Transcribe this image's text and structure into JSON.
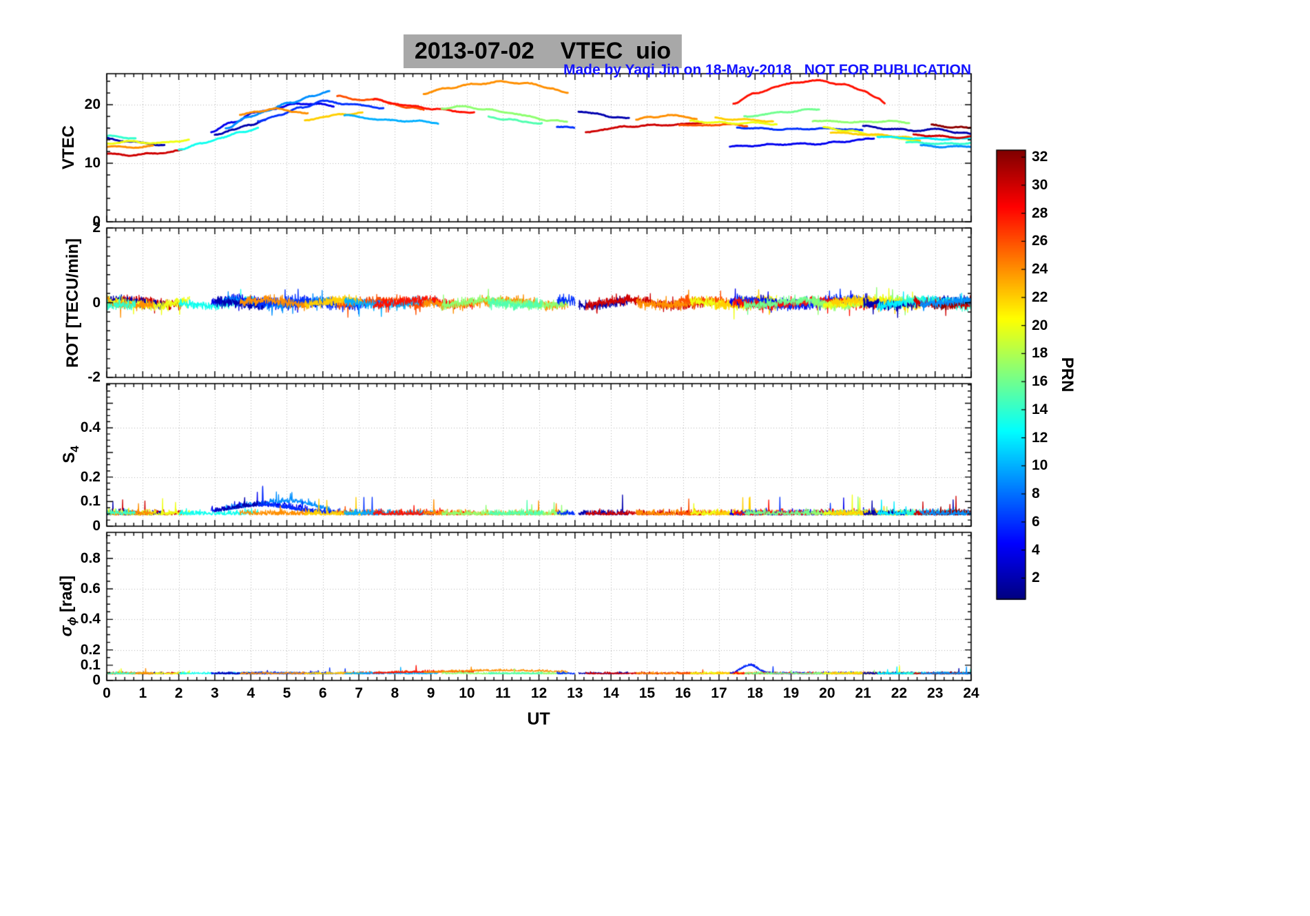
{
  "header": {
    "title": "2013-07-02    VTEC  uio",
    "credit": "Made by Yaqi Jin on 18-May-2018",
    "notice": "NOT FOR PUBLICATION"
  },
  "colors": {
    "credit_blue": "#1414ff",
    "title_bg": "#a8a8a8",
    "grid": "#b0b0b0"
  },
  "axis_labels": {
    "s4_main": "S",
    "s4_sub": "4",
    "sigma_symbol": "σ",
    "sigma_sub": "ϕ",
    "sigma_unit": " [rad]"
  },
  "chart_data": {
    "type": "line",
    "title": "2013-07-02    VTEC  uio",
    "xlabel": "UT",
    "x_range": [
      0,
      24
    ],
    "x_ticks": [
      0,
      1,
      2,
      3,
      4,
      5,
      6,
      7,
      8,
      9,
      10,
      11,
      12,
      13,
      14,
      15,
      16,
      17,
      18,
      19,
      20,
      21,
      22,
      23,
      24
    ],
    "x_minor_step": 0.25,
    "grid": "dotted",
    "colorbar": {
      "label": "PRN",
      "colormap": "jet",
      "range": [
        0.5,
        32.5
      ],
      "ticks": [
        2,
        4,
        6,
        8,
        10,
        12,
        14,
        16,
        18,
        20,
        22,
        24,
        26,
        28,
        30,
        32
      ]
    },
    "panels": [
      {
        "id": "vtec",
        "ylabel": "VTEC",
        "ylim": [
          0,
          25.3
        ],
        "yticks": [
          [
            0,
            "0"
          ],
          [
            10,
            "10"
          ],
          [
            20,
            "20"
          ]
        ],
        "minor_step": 2,
        "grid_y": [
          10,
          20
        ]
      },
      {
        "id": "rot",
        "ylabel": "ROT [TECU/min]",
        "ylim": [
          -2,
          2
        ],
        "yticks": [
          [
            -2,
            "-2"
          ],
          [
            0,
            "0"
          ],
          [
            2,
            "2"
          ]
        ],
        "minor_step": 0.25,
        "grid_y": [
          0
        ]
      },
      {
        "id": "s4",
        "ylabel": "S_4",
        "ylim": [
          0,
          0.58
        ],
        "yticks": [
          [
            0,
            "0"
          ],
          [
            0.1,
            "0.1"
          ],
          [
            0.2,
            "0.2"
          ],
          [
            0.3,
            null
          ],
          [
            0.4,
            "0.4"
          ],
          [
            0.5,
            null
          ]
        ],
        "minor_step": 0.025,
        "grid_y": [
          0.2,
          0.4
        ]
      },
      {
        "id": "sigma",
        "ylabel": "σ_ϕ [rad]",
        "ylim": [
          0,
          0.97
        ],
        "yticks": [
          [
            0,
            "0"
          ],
          [
            0.1,
            "0.1"
          ],
          [
            0.2,
            "0.2"
          ],
          [
            0.4,
            "0.4"
          ],
          [
            0.6,
            "0.6"
          ],
          [
            0.8,
            "0.8"
          ]
        ],
        "minor_step": 0.05,
        "grid_y": [
          0.2,
          0.4,
          0.6,
          0.8
        ]
      }
    ],
    "arcs": [
      {
        "prn": 30,
        "pts": [
          [
            0,
            11.6
          ],
          [
            0.6,
            11.4
          ],
          [
            1.2,
            11.6
          ],
          [
            1.7,
            11.9
          ],
          [
            2.1,
            12.2
          ]
        ]
      },
      {
        "prn": 2,
        "pts": [
          [
            0,
            14.2
          ],
          [
            0.5,
            13.8
          ],
          [
            1.1,
            13.4
          ],
          [
            1.6,
            13.1
          ]
        ]
      },
      {
        "prn": 20,
        "pts": [
          [
            0,
            13.4
          ],
          [
            0.7,
            13.7
          ],
          [
            1.4,
            13.4
          ],
          [
            2.0,
            13.8
          ],
          [
            2.3,
            14.0
          ]
        ]
      },
      {
        "prn": 24,
        "pts": [
          [
            0,
            12.9
          ],
          [
            0.6,
            12.7
          ],
          [
            1.3,
            12.9
          ]
        ]
      },
      {
        "prn": 14,
        "pts": [
          [
            0,
            14.6
          ],
          [
            0.8,
            14.3
          ]
        ]
      },
      {
        "prn": 13,
        "pts": [
          [
            2.0,
            12.4
          ],
          [
            2.6,
            13.3
          ],
          [
            3.2,
            14.4
          ],
          [
            3.8,
            15.4
          ],
          [
            4.2,
            16.0
          ]
        ]
      },
      {
        "prn": 4,
        "pts": [
          [
            2.9,
            15.4
          ],
          [
            3.5,
            17.0
          ],
          [
            4.1,
            18.6
          ],
          [
            4.7,
            19.4
          ],
          [
            5.3,
            20.2
          ],
          [
            5.9,
            20.1
          ],
          [
            6.3,
            19.8
          ]
        ]
      },
      {
        "prn": 9,
        "pts": [
          [
            3.3,
            16.0
          ],
          [
            3.9,
            17.8
          ],
          [
            4.5,
            19.1
          ],
          [
            5.1,
            20.4
          ],
          [
            5.7,
            21.4
          ],
          [
            6.2,
            22.4
          ]
        ]
      },
      {
        "prn": 2,
        "pts": [
          [
            3.0,
            14.9
          ],
          [
            3.5,
            15.7
          ],
          [
            4.0,
            16.6
          ],
          [
            4.4,
            17.4
          ]
        ]
      },
      {
        "prn": 6,
        "pts": [
          [
            4.2,
            17.1
          ],
          [
            4.8,
            18.3
          ],
          [
            5.4,
            19.5
          ],
          [
            6.0,
            20.6
          ],
          [
            6.6,
            20.2
          ],
          [
            7.2,
            19.8
          ],
          [
            7.7,
            19.4
          ]
        ]
      },
      {
        "prn": 26,
        "pts": [
          [
            6.4,
            21.6
          ],
          [
            6.9,
            20.8
          ],
          [
            7.4,
            21.0
          ],
          [
            7.9,
            20.2
          ],
          [
            8.4,
            19.5
          ],
          [
            8.8,
            19.2
          ]
        ]
      },
      {
        "prn": 24,
        "pts": [
          [
            3.7,
            18.2
          ],
          [
            4.2,
            18.9
          ],
          [
            4.7,
            19.3
          ],
          [
            5.2,
            18.9
          ],
          [
            5.6,
            18.4
          ]
        ]
      },
      {
        "prn": 22,
        "pts": [
          [
            5.5,
            17.3
          ],
          [
            6.0,
            17.9
          ],
          [
            6.6,
            18.4
          ],
          [
            7.1,
            18.6
          ]
        ]
      },
      {
        "prn": 10,
        "pts": [
          [
            6.6,
            18.3
          ],
          [
            7.2,
            17.7
          ],
          [
            7.9,
            17.3
          ],
          [
            8.6,
            17.2
          ],
          [
            9.2,
            16.9
          ]
        ]
      },
      {
        "prn": 28,
        "pts": [
          [
            7.4,
            20.9
          ],
          [
            7.9,
            20.3
          ],
          [
            8.5,
            19.7
          ],
          [
            9.1,
            19.3
          ],
          [
            9.7,
            18.9
          ],
          [
            10.2,
            18.6
          ]
        ]
      },
      {
        "prn": 24,
        "pts": [
          [
            8.8,
            21.9
          ],
          [
            9.5,
            22.9
          ],
          [
            10.2,
            23.5
          ],
          [
            10.9,
            23.9
          ],
          [
            11.6,
            23.7
          ],
          [
            12.3,
            22.9
          ],
          [
            12.8,
            21.9
          ]
        ]
      },
      {
        "prn": 17,
        "pts": [
          [
            9.3,
            19.4
          ],
          [
            9.9,
            19.7
          ],
          [
            10.5,
            19.2
          ],
          [
            11.1,
            18.7
          ],
          [
            11.7,
            18.0
          ],
          [
            12.3,
            17.3
          ],
          [
            12.8,
            17.1
          ]
        ]
      },
      {
        "prn": 15,
        "pts": [
          [
            10.6,
            17.9
          ],
          [
            11.1,
            17.5
          ],
          [
            11.6,
            17.1
          ],
          [
            12.1,
            16.8
          ]
        ]
      },
      {
        "prn": 6,
        "pts": [
          [
            12.5,
            16.3
          ],
          [
            13.0,
            16.0
          ]
        ]
      },
      {
        "prn": 2,
        "pts": [
          [
            13.1,
            18.9
          ],
          [
            13.6,
            18.4
          ],
          [
            14.1,
            17.9
          ],
          [
            14.5,
            17.6
          ]
        ]
      },
      {
        "prn": 30,
        "pts": [
          [
            13.3,
            15.2
          ],
          [
            13.9,
            15.9
          ],
          [
            14.5,
            16.3
          ],
          [
            15.2,
            16.5
          ],
          [
            15.9,
            16.6
          ],
          [
            16.6,
            17.0
          ]
        ]
      },
      {
        "prn": 24,
        "pts": [
          [
            14.7,
            17.4
          ],
          [
            15.1,
            17.9
          ],
          [
            15.6,
            18.2
          ],
          [
            16.0,
            18.0
          ],
          [
            16.4,
            17.6
          ]
        ]
      },
      {
        "prn": 26,
        "pts": [
          [
            15.9,
            16.6
          ],
          [
            16.4,
            16.4
          ],
          [
            16.9,
            16.6
          ],
          [
            17.4,
            16.6
          ],
          [
            17.8,
            16.4
          ]
        ]
      },
      {
        "prn": 20,
        "pts": [
          [
            16.2,
            17.2
          ],
          [
            16.8,
            17.0
          ],
          [
            17.4,
            16.8
          ],
          [
            18.0,
            16.9
          ],
          [
            18.6,
            16.7
          ]
        ]
      },
      {
        "prn": 22,
        "pts": [
          [
            16.9,
            17.7
          ],
          [
            17.4,
            17.5
          ],
          [
            18.0,
            17.4
          ],
          [
            18.5,
            17.1
          ]
        ]
      },
      {
        "prn": 4,
        "pts": [
          [
            17.3,
            12.8
          ],
          [
            17.9,
            13.0
          ],
          [
            18.5,
            13.2
          ],
          [
            19.1,
            13.3
          ],
          [
            19.7,
            13.3
          ],
          [
            20.3,
            13.6
          ],
          [
            20.9,
            14.0
          ],
          [
            21.3,
            14.2
          ]
        ]
      },
      {
        "prn": 6,
        "pts": [
          [
            17.5,
            16.1
          ],
          [
            18.2,
            15.9
          ],
          [
            18.9,
            15.8
          ],
          [
            19.6,
            15.9
          ],
          [
            20.3,
            15.9
          ],
          [
            21.0,
            15.6
          ]
        ]
      },
      {
        "prn": 28,
        "pts": [
          [
            17.4,
            20.3
          ],
          [
            18.0,
            21.9
          ],
          [
            18.6,
            23.1
          ],
          [
            19.2,
            23.9
          ],
          [
            19.8,
            24.1
          ],
          [
            20.4,
            23.5
          ],
          [
            21.0,
            22.5
          ],
          [
            21.4,
            21.1
          ],
          [
            21.6,
            20.2
          ]
        ]
      },
      {
        "prn": 16,
        "pts": [
          [
            17.7,
            17.9
          ],
          [
            18.3,
            18.4
          ],
          [
            18.9,
            18.8
          ],
          [
            19.4,
            19.1
          ],
          [
            19.8,
            19.2
          ]
        ]
      },
      {
        "prn": 17,
        "pts": [
          [
            19.6,
            17.3
          ],
          [
            20.3,
            17.1
          ],
          [
            21.0,
            17.0
          ],
          [
            21.7,
            17.2
          ],
          [
            22.3,
            16.9
          ]
        ]
      },
      {
        "prn": 20,
        "pts": [
          [
            19.9,
            16.1
          ],
          [
            20.6,
            15.5
          ],
          [
            21.3,
            14.9
          ],
          [
            22.0,
            14.3
          ],
          [
            22.5,
            13.8
          ]
        ]
      },
      {
        "prn": 22,
        "pts": [
          [
            20.1,
            15.3
          ],
          [
            20.8,
            15.0
          ],
          [
            21.5,
            14.8
          ],
          [
            22.1,
            14.5
          ],
          [
            22.6,
            13.9
          ]
        ]
      },
      {
        "prn": 2,
        "pts": [
          [
            21.0,
            16.3
          ],
          [
            21.7,
            15.9
          ],
          [
            22.4,
            15.6
          ],
          [
            23.1,
            15.8
          ],
          [
            23.7,
            15.2
          ],
          [
            24,
            15.0
          ]
        ]
      },
      {
        "prn": 12,
        "pts": [
          [
            21.4,
            14.6
          ],
          [
            22.1,
            14.3
          ],
          [
            22.8,
            14.2
          ],
          [
            23.5,
            14.1
          ],
          [
            24,
            14.3
          ]
        ]
      },
      {
        "prn": 14,
        "pts": [
          [
            22.2,
            13.6
          ],
          [
            22.9,
            13.4
          ],
          [
            23.6,
            13.3
          ],
          [
            24,
            13.5
          ]
        ]
      },
      {
        "prn": 30,
        "pts": [
          [
            22.4,
            14.9
          ],
          [
            23.1,
            14.6
          ],
          [
            23.7,
            14.4
          ],
          [
            24,
            14.5
          ]
        ]
      },
      {
        "prn": 32,
        "pts": [
          [
            22.9,
            16.5
          ],
          [
            23.5,
            16.2
          ],
          [
            24,
            16.0
          ]
        ]
      },
      {
        "prn": 9,
        "pts": [
          [
            22.6,
            13.0
          ],
          [
            23.3,
            12.8
          ],
          [
            24,
            12.9
          ]
        ]
      }
    ],
    "noise": {
      "rot": {
        "step": 0.008,
        "amp": 0.13,
        "offset_amp": 0.07,
        "spike_prob": 0.02,
        "spike_amp": 0.35,
        "line_width": 1.3
      },
      "s4": {
        "step": 0.01,
        "base": 0.045,
        "amp": 0.02,
        "spike_prob": 0.01,
        "spike_amp": 0.07,
        "line_width": 1.3
      },
      "sigma": {
        "step": 0.01,
        "base": 0.042,
        "amp": 0.012,
        "spike_prob": 0.004,
        "spike_amp": 0.05,
        "line_width": 1.3
      }
    },
    "bumps": {
      "s4": [
        {
          "t": 4.3,
          "w": 0.9,
          "h": 0.035,
          "prns": [
            2,
            4,
            6,
            9
          ]
        },
        {
          "t": 5.4,
          "w": 0.6,
          "h": 0.03,
          "prns": [
            9,
            13
          ]
        }
      ],
      "sigma": [
        {
          "t": 17.85,
          "w": 0.22,
          "h": 0.055,
          "prns": [
            4,
            6
          ]
        },
        {
          "t": 11.0,
          "w": 1.6,
          "h": 0.02,
          "prns": [
            24
          ]
        },
        {
          "t": 9.5,
          "w": 1.3,
          "h": 0.012,
          "prns": [
            26,
            28
          ]
        }
      ]
    }
  }
}
